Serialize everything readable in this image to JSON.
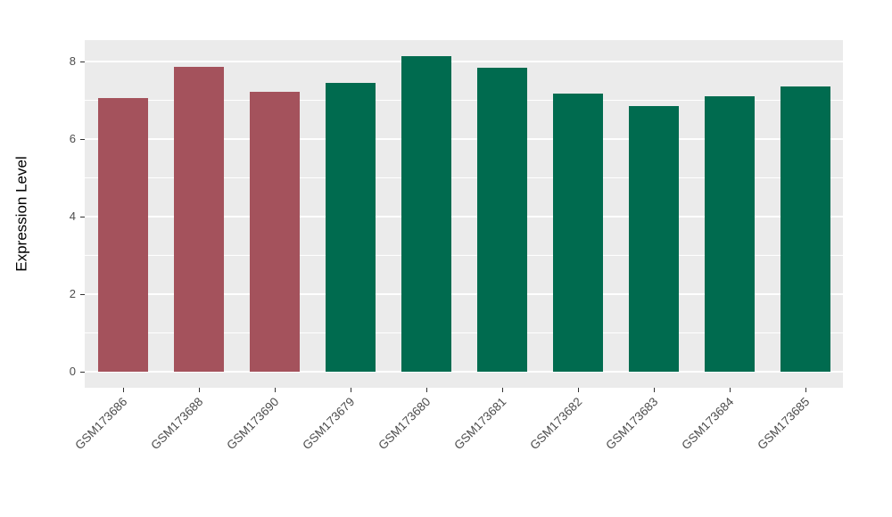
{
  "chart_data": {
    "type": "bar",
    "title": "",
    "xlabel": "",
    "ylabel": "Expression Level",
    "categories": [
      "GSM173686",
      "GSM173688",
      "GSM173690",
      "GSM173679",
      "GSM173680",
      "GSM173681",
      "GSM173682",
      "GSM173683",
      "GSM173684",
      "GSM173685"
    ],
    "values": [
      7.05,
      7.87,
      7.21,
      7.45,
      8.14,
      7.84,
      7.18,
      6.86,
      7.1,
      7.36
    ],
    "bar_colors": [
      "#A4525C",
      "#A4525C",
      "#A4525C",
      "#006B4F",
      "#006B4F",
      "#006B4F",
      "#006B4F",
      "#006B4F",
      "#006B4F",
      "#006B4F"
    ],
    "ylim": [
      0,
      8.56
    ],
    "yticks": [
      0,
      2,
      4,
      6,
      8
    ],
    "yticks_minor": [
      1,
      3,
      5,
      7
    ],
    "grid": true,
    "legend_position": "none",
    "panel_background": "#EBEBEB",
    "gridline_color": "#FFFFFF",
    "tick_label_color": "#4D4D4D",
    "axis_title_color": "#000000",
    "outer_background": "#FFFFFF"
  }
}
